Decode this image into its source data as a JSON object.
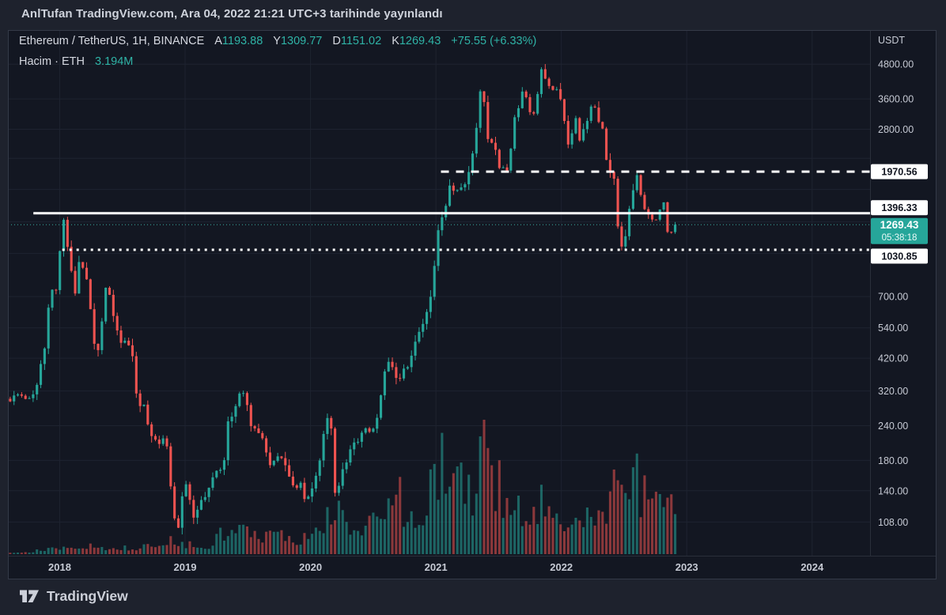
{
  "header": {
    "publish_text": "AnlTufan TradingView.com, Ara 04, 2022 21:21 UTC+3 tarihinde yayınlandı"
  },
  "legend": {
    "symbol_title": "Ethereum / TetherUS, 1H, BINANCE",
    "ohlc": [
      {
        "k": "A",
        "v": "1193.88"
      },
      {
        "k": "Y",
        "v": "1309.77"
      },
      {
        "k": "D",
        "v": "1151.02"
      },
      {
        "k": "K",
        "v": "1269.43"
      }
    ],
    "change": "+75.55 (+6.33%)",
    "volume_row": {
      "label": "Hacim · ETH",
      "value": "3.194M"
    }
  },
  "footer": {
    "brand": "TradingView"
  },
  "colors": {
    "up": "#26a69a",
    "down": "#ef5350",
    "accent_teal": "#2fb3a6",
    "current_label_bg": "#26a69a",
    "line_white": "#ffffff",
    "widget_bg": "#131722",
    "page_bg": "#1e222d",
    "grid": "#1e2330",
    "border": "#343a48",
    "axis_sep": "#2a2f3a"
  },
  "chart_data": {
    "type": "candlestick+volume",
    "title": "Ethereum / TetherUS, 1H, BINANCE",
    "y_axis": {
      "unit_label": "USDT",
      "scale": "log",
      "ticks": [
        {
          "label": "4800.00",
          "price": 4800
        },
        {
          "label": "3600.00",
          "price": 3600
        },
        {
          "label": "2800.00",
          "price": 2800
        },
        {
          "label": "700.00",
          "price": 700
        },
        {
          "label": "540.00",
          "price": 540
        },
        {
          "label": "420.00",
          "price": 420
        },
        {
          "label": "320.00",
          "price": 320
        },
        {
          "label": "240.00",
          "price": 240
        },
        {
          "label": "180.00",
          "price": 180
        },
        {
          "label": "140.00",
          "price": 140
        },
        {
          "label": "108.00",
          "price": 108
        }
      ],
      "minor_gridline_prices": [
        2200,
        1700,
        1300,
        1000
      ],
      "top_price": 6371,
      "bottom_price": 81.7
    },
    "x_axis": {
      "tick_labels": [
        "2018",
        "2019",
        "2020",
        "2021",
        "2022",
        "2023",
        "2024"
      ],
      "tick_years": [
        2018,
        2019,
        2020,
        2021,
        2022,
        2023,
        2024
      ],
      "left_year": 2017.587,
      "right_year": 2024.462
    },
    "price_lines": [
      {
        "name": "resistance-dashed-line",
        "label": "1970.56",
        "price": 1970.56,
        "style": "dashed",
        "color": "#ffffff",
        "start_year": 2021.04
      },
      {
        "name": "support-solid-line",
        "label": "1396.33",
        "price": 1396.33,
        "style": "solid",
        "color": "#ffffff",
        "start_year": 2017.79
      },
      {
        "name": "current-price-line",
        "label": "1269.43",
        "price": 1269.43,
        "style": "dotted-fine",
        "color": "#3aada1",
        "start_year": 2017.587,
        "countdown": "05:38:18"
      },
      {
        "name": "support-dotted-line",
        "label": "1030.85",
        "price": 1030.85,
        "style": "dotted-bold",
        "color": "#ffffff",
        "start_year": 2018.02
      }
    ],
    "up_color": "#26a69a",
    "down_color": "#ef5350",
    "data_start_year": 2017.59,
    "data_end_year": 2022.923,
    "candle_count": 175,
    "last_close": 1269.43,
    "price_path": [
      [
        2017.59,
        300
      ],
      [
        2017.63,
        293
      ],
      [
        2017.66,
        320
      ],
      [
        2017.7,
        308
      ],
      [
        2017.74,
        298
      ],
      [
        2017.78,
        300
      ],
      [
        2017.82,
        320
      ],
      [
        2017.86,
        400
      ],
      [
        2017.9,
        470
      ],
      [
        2017.93,
        690
      ],
      [
        2017.96,
        730
      ],
      [
        2018.0,
        755
      ],
      [
        2018.02,
        1050
      ],
      [
        2018.04,
        1390
      ],
      [
        2018.06,
        1150
      ],
      [
        2018.08,
        1020
      ],
      [
        2018.11,
        880
      ],
      [
        2018.13,
        660
      ],
      [
        2018.16,
        920
      ],
      [
        2018.19,
        890
      ],
      [
        2018.22,
        850
      ],
      [
        2018.25,
        700
      ],
      [
        2018.28,
        530
      ],
      [
        2018.31,
        395
      ],
      [
        2018.34,
        520
      ],
      [
        2018.37,
        690
      ],
      [
        2018.39,
        800
      ],
      [
        2018.42,
        670
      ],
      [
        2018.45,
        590
      ],
      [
        2018.48,
        520
      ],
      [
        2018.51,
        460
      ],
      [
        2018.54,
        490
      ],
      [
        2018.57,
        465
      ],
      [
        2018.6,
        420
      ],
      [
        2018.62,
        330
      ],
      [
        2018.65,
        280
      ],
      [
        2018.68,
        290
      ],
      [
        2018.71,
        260
      ],
      [
        2018.74,
        215
      ],
      [
        2018.77,
        230
      ],
      [
        2018.79,
        200
      ],
      [
        2018.82,
        210
      ],
      [
        2018.85,
        215
      ],
      [
        2018.87,
        205
      ],
      [
        2018.89,
        160
      ],
      [
        2018.92,
        125
      ],
      [
        2018.95,
        95
      ],
      [
        2018.97,
        112
      ],
      [
        2019.0,
        138
      ],
      [
        2019.03,
        152
      ],
      [
        2019.06,
        125
      ],
      [
        2019.09,
        107
      ],
      [
        2019.12,
        122
      ],
      [
        2019.16,
        134
      ],
      [
        2019.2,
        140
      ],
      [
        2019.24,
        158
      ],
      [
        2019.28,
        166
      ],
      [
        2019.32,
        172
      ],
      [
        2019.36,
        248
      ],
      [
        2019.4,
        262
      ],
      [
        2019.44,
        300
      ],
      [
        2019.47,
        335
      ],
      [
        2019.49,
        300
      ],
      [
        2019.52,
        280
      ],
      [
        2019.55,
        230
      ],
      [
        2019.58,
        240
      ],
      [
        2019.61,
        215
      ],
      [
        2019.64,
        212
      ],
      [
        2019.67,
        190
      ],
      [
        2019.7,
        172
      ],
      [
        2019.74,
        182
      ],
      [
        2019.78,
        186
      ],
      [
        2019.82,
        172
      ],
      [
        2019.86,
        152
      ],
      [
        2019.9,
        142
      ],
      [
        2019.94,
        150
      ],
      [
        2019.97,
        128
      ],
      [
        2020.0,
        132
      ],
      [
        2020.04,
        148
      ],
      [
        2020.08,
        172
      ],
      [
        2020.12,
        224
      ],
      [
        2020.15,
        262
      ],
      [
        2020.18,
        230
      ],
      [
        2020.2,
        140
      ],
      [
        2020.23,
        135
      ],
      [
        2020.26,
        165
      ],
      [
        2020.3,
        172
      ],
      [
        2020.34,
        200
      ],
      [
        2020.38,
        208
      ],
      [
        2020.42,
        226
      ],
      [
        2020.46,
        232
      ],
      [
        2020.5,
        228
      ],
      [
        2020.54,
        242
      ],
      [
        2020.58,
        320
      ],
      [
        2020.62,
        398
      ],
      [
        2020.65,
        428
      ],
      [
        2020.68,
        352
      ],
      [
        2020.71,
        348
      ],
      [
        2020.75,
        378
      ],
      [
        2020.79,
        388
      ],
      [
        2020.83,
        440
      ],
      [
        2020.87,
        510
      ],
      [
        2020.91,
        560
      ],
      [
        2020.95,
        640
      ],
      [
        2020.99,
        740
      ],
      [
        2021.02,
        1120
      ],
      [
        2021.05,
        1280
      ],
      [
        2021.08,
        1380
      ],
      [
        2021.11,
        1660
      ],
      [
        2021.14,
        1830
      ],
      [
        2021.17,
        1560
      ],
      [
        2021.2,
        1790
      ],
      [
        2021.23,
        1690
      ],
      [
        2021.27,
        1940
      ],
      [
        2021.31,
        2280
      ],
      [
        2021.34,
        2820
      ],
      [
        2021.36,
        3480
      ],
      [
        2021.38,
        4080
      ],
      [
        2021.4,
        3500
      ],
      [
        2021.42,
        2760
      ],
      [
        2021.44,
        2320
      ],
      [
        2021.47,
        2620
      ],
      [
        2021.5,
        2280
      ],
      [
        2021.53,
        1950
      ],
      [
        2021.56,
        2120
      ],
      [
        2021.58,
        1980
      ],
      [
        2021.61,
        2300
      ],
      [
        2021.64,
        3140
      ],
      [
        2021.67,
        3230
      ],
      [
        2021.7,
        3820
      ],
      [
        2021.72,
        3950
      ],
      [
        2021.75,
        3420
      ],
      [
        2021.78,
        3000
      ],
      [
        2021.81,
        3420
      ],
      [
        2021.84,
        4150
      ],
      [
        2021.86,
        4620
      ],
      [
        2021.88,
        4400
      ],
      [
        2021.91,
        4150
      ],
      [
        2021.94,
        3980
      ],
      [
        2021.96,
        3820
      ],
      [
        2021.99,
        3920
      ],
      [
        2022.02,
        3420
      ],
      [
        2022.05,
        2780
      ],
      [
        2022.07,
        2420
      ],
      [
        2022.1,
        2700
      ],
      [
        2022.13,
        3020
      ],
      [
        2022.16,
        2560
      ],
      [
        2022.19,
        2780
      ],
      [
        2022.22,
        2940
      ],
      [
        2022.25,
        3320
      ],
      [
        2022.28,
        3380
      ],
      [
        2022.31,
        3020
      ],
      [
        2022.34,
        2880
      ],
      [
        2022.37,
        2280
      ],
      [
        2022.39,
        2020
      ],
      [
        2022.42,
        1980
      ],
      [
        2022.45,
        1760
      ],
      [
        2022.47,
        1180
      ],
      [
        2022.5,
        1060
      ],
      [
        2022.53,
        1180
      ],
      [
        2022.56,
        1440
      ],
      [
        2022.59,
        1680
      ],
      [
        2022.62,
        1880
      ],
      [
        2022.64,
        1700
      ],
      [
        2022.66,
        1560
      ],
      [
        2022.69,
        1420
      ],
      [
        2022.72,
        1330
      ],
      [
        2022.75,
        1320
      ],
      [
        2022.78,
        1340
      ],
      [
        2022.81,
        1520
      ],
      [
        2022.83,
        1580
      ],
      [
        2022.86,
        1190
      ],
      [
        2022.88,
        1230
      ],
      [
        2022.9,
        1160
      ],
      [
        2022.92,
        1269
      ]
    ],
    "volume_path": [
      [
        2017.59,
        3
      ],
      [
        2017.8,
        4
      ],
      [
        2017.95,
        9
      ],
      [
        2018.05,
        13
      ],
      [
        2018.2,
        11
      ],
      [
        2018.4,
        9
      ],
      [
        2018.6,
        9
      ],
      [
        2018.75,
        11
      ],
      [
        2018.89,
        24
      ],
      [
        2019.0,
        15
      ],
      [
        2019.2,
        13
      ],
      [
        2019.37,
        44
      ],
      [
        2019.5,
        32
      ],
      [
        2019.65,
        22
      ],
      [
        2019.8,
        24
      ],
      [
        2019.95,
        21
      ],
      [
        2020.05,
        30
      ],
      [
        2020.19,
        58
      ],
      [
        2020.3,
        38
      ],
      [
        2020.45,
        40
      ],
      [
        2020.58,
        55
      ],
      [
        2020.66,
        115
      ],
      [
        2020.75,
        58
      ],
      [
        2020.85,
        62
      ],
      [
        2020.95,
        80
      ],
      [
        2021.04,
        150
      ],
      [
        2021.12,
        100
      ],
      [
        2021.2,
        92
      ],
      [
        2021.3,
        98
      ],
      [
        2021.37,
        162
      ],
      [
        2021.45,
        112
      ],
      [
        2021.55,
        88
      ],
      [
        2021.65,
        68
      ],
      [
        2021.75,
        72
      ],
      [
        2021.85,
        78
      ],
      [
        2021.95,
        58
      ],
      [
        2022.05,
        56
      ],
      [
        2022.15,
        50
      ],
      [
        2022.25,
        46
      ],
      [
        2022.37,
        78
      ],
      [
        2022.46,
        148
      ],
      [
        2022.55,
        72
      ],
      [
        2022.61,
        98
      ],
      [
        2022.7,
        66
      ],
      [
        2022.8,
        56
      ],
      [
        2022.85,
        95
      ],
      [
        2022.92,
        55
      ]
    ]
  }
}
